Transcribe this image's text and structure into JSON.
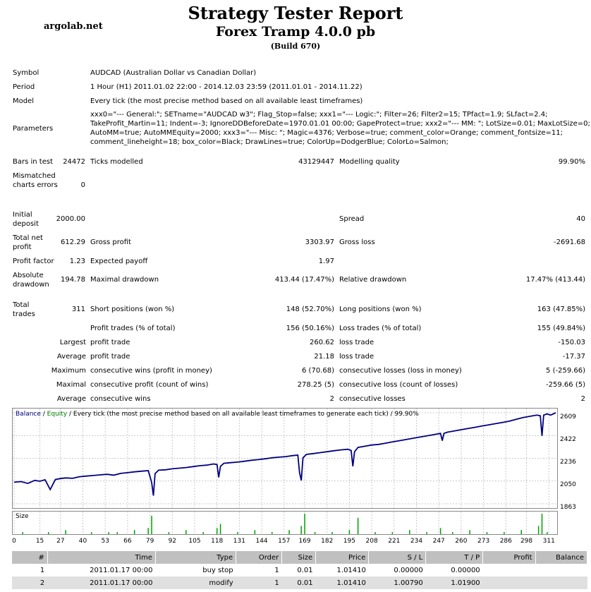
{
  "header": {
    "title": "Strategy Tester Report",
    "subtitle": "Forex Tramp 4.0.0 pb",
    "build": "(Build 670)",
    "site": "argolab.net"
  },
  "info": {
    "symbol_label": "Symbol",
    "symbol_value": "AUDCAD (Australian Dollar vs Canadian Dollar)",
    "period_label": "Period",
    "period_value": "1 Hour (H1) 2011.01.02 22:00 - 2014.12.03 23:59 (2011.01.01 - 2014.11.22)",
    "model_label": "Model",
    "model_value": "Every tick (the most precise method based on all available least timeframes)",
    "params_label": "Parameters",
    "params_lines": [
      "xxx0=\"--- General:\"; SETname=\"AUDCAD w3\"; Flag_Stop=false; xxx1=\"--- Logic:\"; Filter=26; Filter2=15; TPfact=1.9; SLfact=2.4;",
      "TakeProfit_Martin=11; Indent=-3; IgnoreDDBeforeDate=1970.01.01 00:00; GapeProtect=true; xxx2=\"--- MM: \"; LotSize=0.01; MaxLotSize=0;",
      "AutoMM=true; AutoMMEquity=2000; xxx3=\"--- Misc: \"; Magic=4376; Verbose=true; comment_color=Orange; comment_fontsize=11;",
      "comment_lineheight=18; box_color=Black; DrawLines=true; ColorUp=DodgerBlue; ColorLo=Salmon;"
    ]
  },
  "stats": {
    "bars_label": "Bars in test",
    "bars_value": "24472",
    "ticks_label": "Ticks modelled",
    "ticks_value": "43129447",
    "quality_label": "Modelling quality",
    "quality_value": "99.90%",
    "mismatch_label": "Mismatched charts errors",
    "mismatch_value": "0",
    "deposit_label": "Initial deposit",
    "deposit_value": "2000.00",
    "spread_label": "Spread",
    "spread_value": "40",
    "netprofit_label": "Total net profit",
    "netprofit_value": "612.29",
    "grossprofit_label": "Gross profit",
    "grossprofit_value": "3303.97",
    "grossloss_label": "Gross loss",
    "grossloss_value": "-2691.68",
    "pf_label": "Profit factor",
    "pf_value": "1.23",
    "expected_label": "Expected payoff",
    "expected_value": "1.97",
    "absdd_label": "Absolute drawdown",
    "absdd_value": "194.78",
    "maxdd_label": "Maximal drawdown",
    "maxdd_value": "413.44 (17.47%)",
    "reldd_label": "Relative drawdown",
    "reldd_value": "17.47% (413.44)",
    "trades_label": "Total trades",
    "trades_value": "311",
    "short_label": "Short positions (won %)",
    "short_value": "148 (52.70%)",
    "long_label": "Long positions (won %)",
    "long_value": "163 (47.85%)",
    "profit_trades_label": "Profit trades (% of total)",
    "profit_trades_value": "156 (50.16%)",
    "loss_trades_label": "Loss trades (% of total)",
    "loss_trades_value": "155 (49.84%)",
    "largest_label": "Largest",
    "largest_profit_label": "profit trade",
    "largest_profit_value": "260.62",
    "largest_loss_label": "loss trade",
    "largest_loss_value": "-150.03",
    "average_label": "Average",
    "average_profit_label": "profit trade",
    "average_profit_value": "21.18",
    "average_loss_label": "loss trade",
    "average_loss_value": "-17.37",
    "maximum_label": "Maximum",
    "max_wins_label": "consecutive wins (profit in money)",
    "max_wins_value": "6 (70.68)",
    "max_losses_label": "consecutive losses (loss in money)",
    "max_losses_value": "5 (-259.66)",
    "maximal_label": "Maximal",
    "maximal_profit_label": "consecutive profit (count of wins)",
    "maximal_profit_value": "278.25 (5)",
    "maximal_loss_label": "consecutive loss (count of losses)",
    "maximal_loss_value": "-259.66 (5)",
    "avg2_label": "Average",
    "avg_wins_label": "consecutive wins",
    "avg_wins_value": "2",
    "avg_losses_label": "consecutive losses",
    "avg_losses_value": "2"
  },
  "chart_legend": {
    "balance": "Balance",
    "sep1": " / ",
    "equity": "Equity",
    "rest": " / Every tick (the most precise method based on all available least timeframes to generate each tick) / 99.90%",
    "size_label": "Size"
  },
  "chart_data": {
    "type": "line",
    "yticks": [
      "2609",
      "2422",
      "2236",
      "2050",
      "1863"
    ],
    "ylim": [
      1863,
      2609
    ],
    "xticks": [
      "0",
      "15",
      "27",
      "40",
      "53",
      "66",
      "79",
      "92",
      "105",
      "118",
      "131",
      "144",
      "157",
      "169",
      "182",
      "195",
      "208",
      "221",
      "234",
      "247",
      "260",
      "273",
      "286",
      "298",
      "311"
    ],
    "xlim": [
      0,
      315
    ],
    "series": [
      {
        "color": "#000080",
        "x": [
          0,
          4,
          8,
          12,
          15,
          18,
          21,
          24,
          27,
          30,
          34,
          38,
          42,
          46,
          50,
          54,
          58,
          62,
          66,
          70,
          74,
          78,
          80,
          81,
          82,
          84,
          88,
          92,
          96,
          100,
          104,
          108,
          112,
          116,
          118,
          119,
          120,
          122,
          126,
          130,
          134,
          138,
          142,
          146,
          150,
          154,
          158,
          162,
          165,
          166,
          167,
          168,
          170,
          174,
          178,
          182,
          186,
          190,
          194,
          196,
          197,
          198,
          200,
          204,
          208,
          212,
          216,
          220,
          224,
          228,
          232,
          236,
          240,
          244,
          248,
          249,
          250,
          252,
          256,
          260,
          264,
          268,
          272,
          276,
          280,
          284,
          288,
          292,
          296,
          300,
          304,
          306,
          307,
          308,
          310,
          312,
          315
        ],
        "y": [
          2040,
          2045,
          2030,
          2055,
          2048,
          2060,
          1980,
          2062,
          2070,
          2075,
          2072,
          2085,
          2090,
          2095,
          2100,
          2105,
          2098,
          2112,
          2118,
          2125,
          2130,
          2135,
          2040,
          1930,
          2110,
          2138,
          2142,
          2150,
          2155,
          2160,
          2168,
          2175,
          2180,
          2190,
          2185,
          2080,
          2170,
          2195,
          2200,
          2205,
          2212,
          2220,
          2225,
          2232,
          2240,
          2245,
          2250,
          2258,
          2262,
          2120,
          2055,
          2240,
          2268,
          2275,
          2282,
          2290,
          2298,
          2305,
          2310,
          2300,
          2170,
          2290,
          2325,
          2335,
          2345,
          2350,
          2360,
          2370,
          2380,
          2390,
          2400,
          2410,
          2420,
          2430,
          2440,
          2380,
          2440,
          2450,
          2460,
          2470,
          2480,
          2490,
          2500,
          2510,
          2520,
          2530,
          2540,
          2555,
          2570,
          2580,
          2590,
          2585,
          2420,
          2590,
          2600,
          2590,
          2609
        ]
      }
    ],
    "size_bars": {
      "x": [
        5,
        20,
        30,
        45,
        55,
        60,
        70,
        78,
        80,
        90,
        100,
        110,
        118,
        120,
        130,
        140,
        150,
        160,
        167,
        169,
        175,
        185,
        195,
        200,
        210,
        220,
        230,
        240,
        248,
        255,
        265,
        275,
        285,
        295,
        305,
        307,
        310
      ],
      "values": [
        1,
        1,
        2,
        1,
        1,
        1,
        2,
        3,
        9,
        1,
        2,
        1,
        3,
        5,
        1,
        2,
        1,
        2,
        4,
        10,
        1,
        1,
        2,
        8,
        1,
        1,
        2,
        1,
        3,
        1,
        2,
        1,
        1,
        2,
        4,
        10,
        1
      ]
    }
  },
  "orders_table": {
    "headers": [
      "#",
      "Time",
      "Type",
      "Order",
      "Size",
      "Price",
      "S / L",
      "T / P",
      "Profit",
      "Balance"
    ],
    "rows": [
      [
        "1",
        "2011.01.17 00:00",
        "buy stop",
        "1",
        "0.01",
        "1.01410",
        "0.00000",
        "0.00000",
        "",
        ""
      ],
      [
        "2",
        "2011.01.17 00:00",
        "modify",
        "1",
        "0.01",
        "1.01410",
        "1.00790",
        "1.01900",
        "",
        ""
      ]
    ]
  },
  "colors": {
    "balance_line": "#000080",
    "equity_text": "#008000",
    "size_bars": "#00a000",
    "header_bg": "#c0c0c0"
  }
}
